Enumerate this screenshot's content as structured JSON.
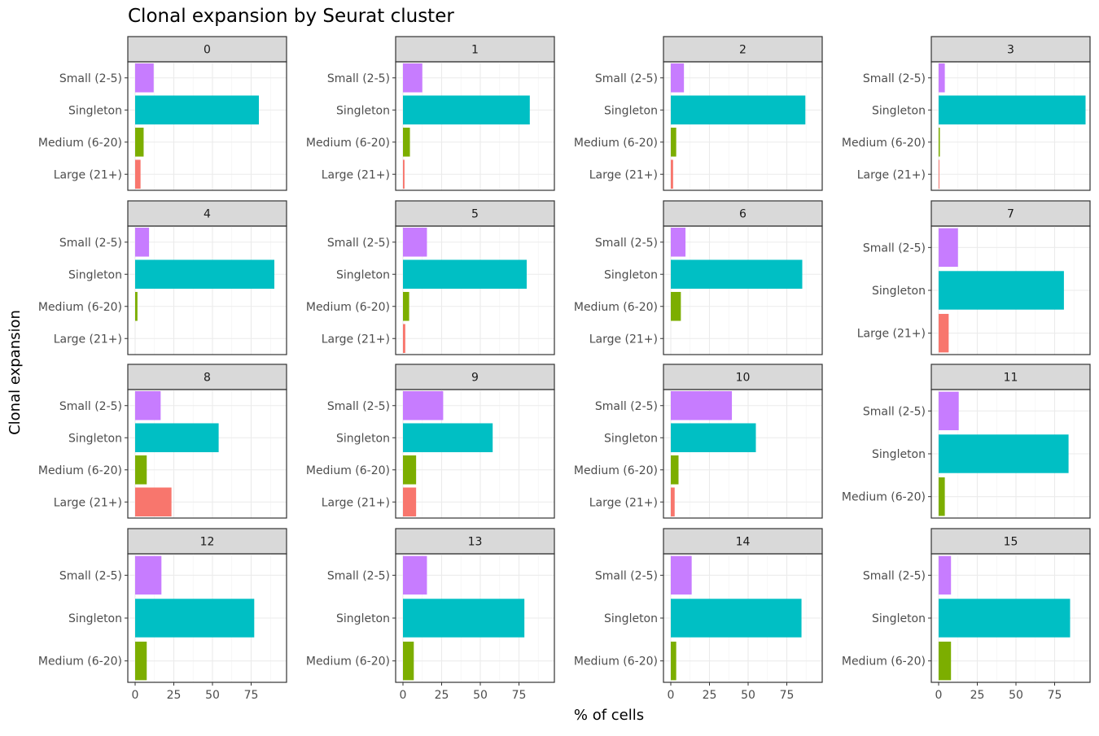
{
  "chart_data": {
    "type": "bar",
    "orientation": "horizontal",
    "title": "Clonal expansion by Seurat cluster",
    "xlabel": "% of cells",
    "ylabel": "Clonal expansion",
    "xlim": [
      0,
      100
    ],
    "x_ticks": [
      0,
      25,
      50,
      75
    ],
    "facet_layout": {
      "ncol": 4,
      "nrow": 4,
      "x_axis_shared": false,
      "y_axis_free": true
    },
    "grid": true,
    "category_order": [
      "Large (21+)",
      "Medium (6-20)",
      "Singleton",
      "Small (2-5)"
    ],
    "colors": {
      "Small (2-5)": "#C77CFF",
      "Singleton": "#00BFC4",
      "Medium (6-20)": "#7CAE00",
      "Large (21+)": "#F8766D"
    },
    "panels": [
      {
        "label": "0",
        "categories": [
          "Large (21+)",
          "Medium (6-20)",
          "Singleton",
          "Small (2-5)"
        ],
        "values": [
          3.5,
          5.5,
          80,
          12
        ],
        "xmax": 100
      },
      {
        "label": "1",
        "categories": [
          "Large (21+)",
          "Medium (6-20)",
          "Singleton",
          "Small (2-5)"
        ],
        "values": [
          1,
          4.5,
          82,
          12.5
        ],
        "xmax": 100
      },
      {
        "label": "2",
        "categories": [
          "Large (21+)",
          "Medium (6-20)",
          "Singleton",
          "Small (2-5)"
        ],
        "values": [
          1.5,
          3.5,
          87,
          8.5
        ],
        "xmax": 100
      },
      {
        "label": "3",
        "categories": [
          "Large (21+)",
          "Medium (6-20)",
          "Singleton",
          "Small (2-5)"
        ],
        "values": [
          0.5,
          0.8,
          95,
          4
        ],
        "xmax": 100
      },
      {
        "label": "4",
        "categories": [
          "Large (21+)",
          "Medium (6-20)",
          "Singleton",
          "Small (2-5)"
        ],
        "values": [
          0,
          1.5,
          90,
          9
        ],
        "xmax": 100
      },
      {
        "label": "5",
        "categories": [
          "Large (21+)",
          "Medium (6-20)",
          "Singleton",
          "Small (2-5)"
        ],
        "values": [
          1.5,
          4,
          80,
          15.5
        ],
        "xmax": 100
      },
      {
        "label": "6",
        "categories": [
          "Large (21+)",
          "Medium (6-20)",
          "Singleton",
          "Small (2-5)"
        ],
        "values": [
          0,
          6.5,
          85,
          9.5
        ],
        "xmax": 100
      },
      {
        "label": "7",
        "categories": [
          "Large (21+)",
          "Singleton",
          "Small (2-5)"
        ],
        "values": [
          6.5,
          81,
          12.5
        ],
        "xmax": 100
      },
      {
        "label": "8",
        "categories": [
          "Large (21+)",
          "Medium (6-20)",
          "Singleton",
          "Small (2-5)"
        ],
        "values": [
          23.5,
          7.5,
          54,
          16.5
        ],
        "xmax": 100
      },
      {
        "label": "9",
        "categories": [
          "Large (21+)",
          "Medium (6-20)",
          "Singleton",
          "Small (2-5)"
        ],
        "values": [
          8.5,
          8.5,
          58,
          26
        ],
        "xmax": 100
      },
      {
        "label": "10",
        "categories": [
          "Large (21+)",
          "Medium (6-20)",
          "Singleton",
          "Small (2-5)"
        ],
        "values": [
          2.5,
          5,
          55,
          39.5
        ],
        "xmax": 100
      },
      {
        "label": "11",
        "categories": [
          "Medium (6-20)",
          "Singleton",
          "Small (2-5)"
        ],
        "values": [
          4,
          84,
          13
        ],
        "xmax": 100
      },
      {
        "label": "12",
        "categories": [
          "Medium (6-20)",
          "Singleton",
          "Small (2-5)"
        ],
        "values": [
          7.5,
          77,
          17
        ],
        "xmax": 100
      },
      {
        "label": "13",
        "categories": [
          "Medium (6-20)",
          "Singleton",
          "Small (2-5)"
        ],
        "values": [
          7,
          78.5,
          15.5
        ],
        "xmax": 100
      },
      {
        "label": "14",
        "categories": [
          "Medium (6-20)",
          "Singleton",
          "Small (2-5)"
        ],
        "values": [
          3.5,
          84.5,
          13.5
        ],
        "xmax": 100
      },
      {
        "label": "15",
        "categories": [
          "Medium (6-20)",
          "Singleton",
          "Small (2-5)"
        ],
        "values": [
          8,
          85,
          8
        ],
        "xmax": 100
      }
    ]
  }
}
